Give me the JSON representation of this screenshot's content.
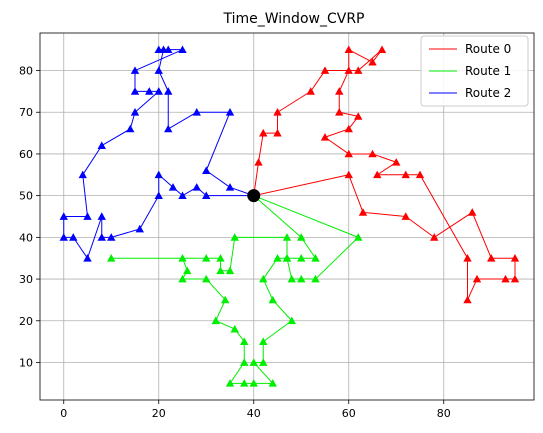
{
  "chart_data": {
    "type": "line",
    "title": "Time_Window_CVRP",
    "xlabel": "",
    "ylabel": "",
    "xlim": [
      -5,
      99
    ],
    "ylim": [
      1,
      89
    ],
    "xticks": [
      0,
      20,
      40,
      60,
      80
    ],
    "yticks": [
      10,
      20,
      30,
      40,
      50,
      60,
      70,
      80
    ],
    "grid": true,
    "legend_position": "top-right",
    "depot": {
      "x": 40,
      "y": 50,
      "color": "#000000"
    },
    "series": [
      {
        "name": "Route 0",
        "color": "#ff0000",
        "points": [
          [
            40,
            50
          ],
          [
            60,
            55
          ],
          [
            63,
            46
          ],
          [
            72,
            45
          ],
          [
            78,
            40
          ],
          [
            86,
            46
          ],
          [
            90,
            35
          ],
          [
            95,
            35
          ],
          [
            95,
            30
          ],
          [
            93,
            30
          ],
          [
            87,
            30
          ],
          [
            85,
            25
          ],
          [
            85,
            35
          ],
          [
            75,
            55
          ],
          [
            72,
            55
          ],
          [
            66,
            55
          ],
          [
            70,
            58
          ],
          [
            65,
            60
          ],
          [
            60,
            60
          ],
          [
            55,
            64
          ],
          [
            60,
            66
          ],
          [
            62,
            69
          ],
          [
            58,
            70
          ],
          [
            58,
            75
          ],
          [
            60,
            80
          ],
          [
            60,
            85
          ],
          [
            65,
            82
          ],
          [
            67,
            85
          ],
          [
            62,
            80
          ],
          [
            55,
            80
          ],
          [
            52,
            75
          ],
          [
            45,
            70
          ],
          [
            45,
            65
          ],
          [
            42,
            65
          ],
          [
            41,
            58
          ],
          [
            40,
            50
          ]
        ]
      },
      {
        "name": "Route 1",
        "color": "#00ee00",
        "points": [
          [
            40,
            50
          ],
          [
            62,
            40
          ],
          [
            53,
            30
          ],
          [
            50,
            30
          ],
          [
            48,
            30
          ],
          [
            47,
            35
          ],
          [
            45,
            35
          ],
          [
            42,
            30
          ],
          [
            44,
            25
          ],
          [
            48,
            20
          ],
          [
            42,
            15
          ],
          [
            42,
            10
          ],
          [
            40,
            10
          ],
          [
            44,
            5
          ],
          [
            40,
            5
          ],
          [
            38,
            5
          ],
          [
            35,
            5
          ],
          [
            38,
            10
          ],
          [
            38,
            15
          ],
          [
            36,
            18
          ],
          [
            32,
            20
          ],
          [
            34,
            25
          ],
          [
            30,
            30
          ],
          [
            25,
            30
          ],
          [
            26,
            32
          ],
          [
            25,
            35
          ],
          [
            10,
            35
          ],
          [
            30,
            35
          ],
          [
            33,
            35
          ],
          [
            33,
            32
          ],
          [
            35,
            32
          ],
          [
            36,
            40
          ],
          [
            47,
            40
          ],
          [
            47,
            35
          ],
          [
            50,
            35
          ],
          [
            53,
            35
          ],
          [
            50,
            40
          ],
          [
            40,
            50
          ]
        ]
      },
      {
        "name": "Route 2",
        "color": "#0000ff",
        "points": [
          [
            40,
            50
          ],
          [
            35,
            52
          ],
          [
            30,
            56
          ],
          [
            35,
            70
          ],
          [
            28,
            70
          ],
          [
            22,
            66
          ],
          [
            22,
            75
          ],
          [
            20,
            80
          ],
          [
            21,
            85
          ],
          [
            20,
            85
          ],
          [
            22,
            85
          ],
          [
            25,
            85
          ],
          [
            15,
            80
          ],
          [
            15,
            75
          ],
          [
            18,
            75
          ],
          [
            20,
            75
          ],
          [
            15,
            70
          ],
          [
            14,
            66
          ],
          [
            8,
            62
          ],
          [
            4,
            55
          ],
          [
            5,
            45
          ],
          [
            0,
            45
          ],
          [
            0,
            40
          ],
          [
            2,
            40
          ],
          [
            5,
            35
          ],
          [
            8,
            45
          ],
          [
            8,
            40
          ],
          [
            10,
            40
          ],
          [
            16,
            42
          ],
          [
            20,
            50
          ],
          [
            20,
            55
          ],
          [
            23,
            52
          ],
          [
            25,
            50
          ],
          [
            28,
            52
          ],
          [
            30,
            50
          ],
          [
            40,
            50
          ]
        ]
      }
    ]
  }
}
